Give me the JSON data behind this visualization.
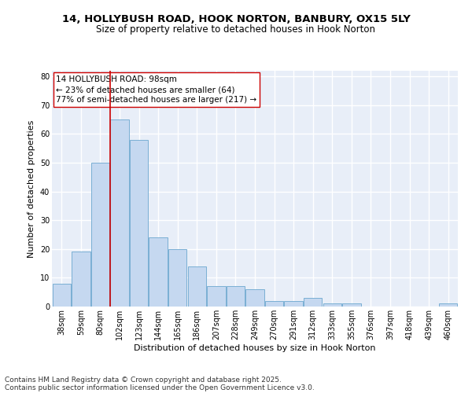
{
  "title_line1": "14, HOLLYBUSH ROAD, HOOK NORTON, BANBURY, OX15 5LY",
  "title_line2": "Size of property relative to detached houses in Hook Norton",
  "xlabel": "Distribution of detached houses by size in Hook Norton",
  "ylabel": "Number of detached properties",
  "categories": [
    "38sqm",
    "59sqm",
    "80sqm",
    "102sqm",
    "123sqm",
    "144sqm",
    "165sqm",
    "186sqm",
    "207sqm",
    "228sqm",
    "249sqm",
    "270sqm",
    "291sqm",
    "312sqm",
    "333sqm",
    "355sqm",
    "376sqm",
    "397sqm",
    "418sqm",
    "439sqm",
    "460sqm"
  ],
  "values": [
    8,
    19,
    50,
    65,
    58,
    24,
    20,
    14,
    7,
    7,
    6,
    2,
    2,
    3,
    1,
    1,
    0,
    0,
    0,
    0,
    1
  ],
  "bar_color": "#c5d8f0",
  "bar_edge_color": "#7aafd4",
  "background_color": "#e8eef8",
  "grid_color": "#ffffff",
  "vline_color": "#cc0000",
  "vline_x": 2.5,
  "annotation_text": "14 HOLLYBUSH ROAD: 98sqm\n← 23% of detached houses are smaller (64)\n77% of semi-detached houses are larger (217) →",
  "annotation_box_color": "#ffffff",
  "annotation_box_edge": "#cc0000",
  "ylim": [
    0,
    82
  ],
  "yticks": [
    0,
    10,
    20,
    30,
    40,
    50,
    60,
    70,
    80
  ],
  "footnote_line1": "Contains HM Land Registry data © Crown copyright and database right 2025.",
  "footnote_line2": "Contains public sector information licensed under the Open Government Licence v3.0.",
  "title_fontsize": 9.5,
  "subtitle_fontsize": 8.5,
  "axis_label_fontsize": 8,
  "tick_fontsize": 7,
  "annotation_fontsize": 7.5,
  "footnote_fontsize": 6.5
}
